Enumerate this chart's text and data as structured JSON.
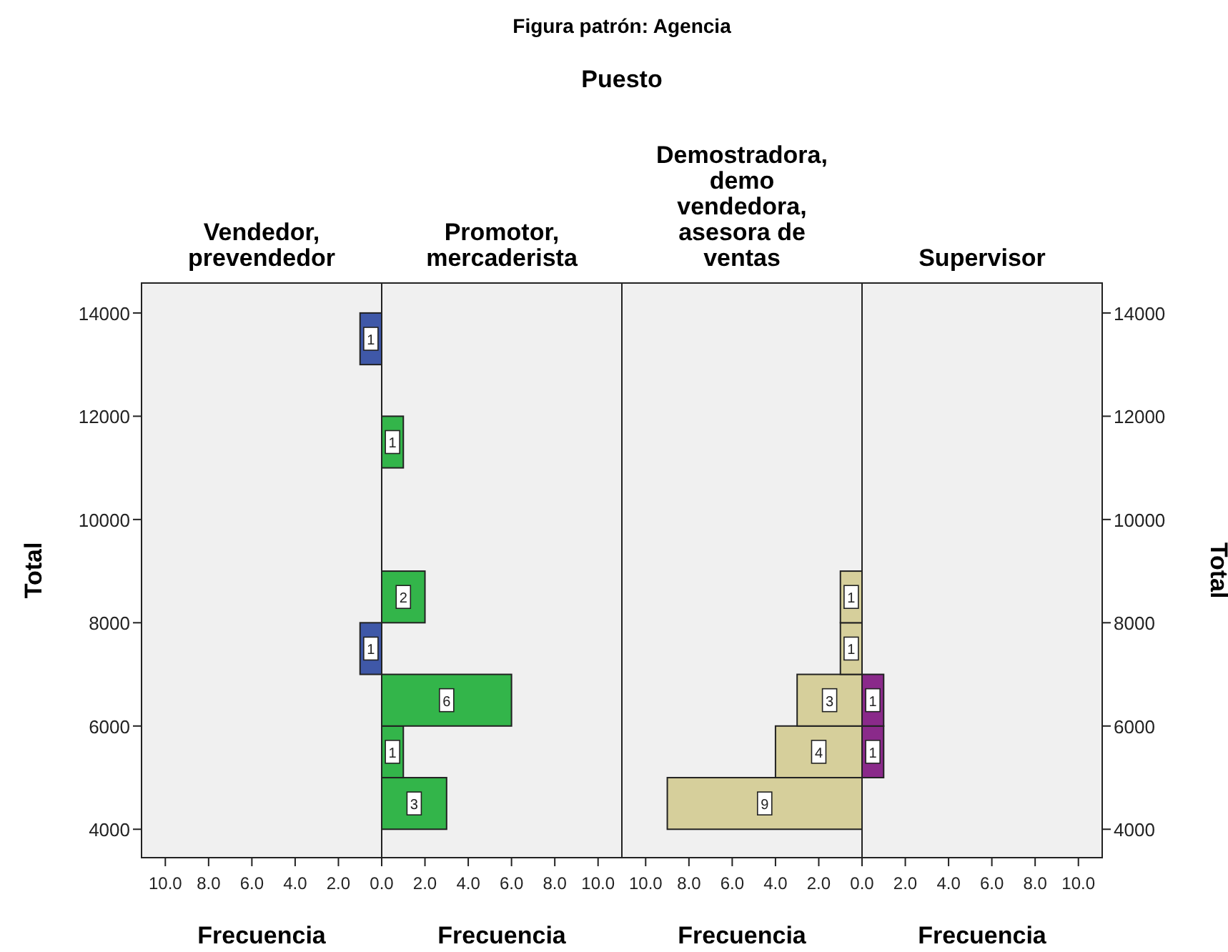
{
  "chart_data": [
    {
      "type": "histogram",
      "orientation": "horizontal",
      "title": "Vendedor, prevendedor",
      "annotations": [
        "Figura patrón: Agencia",
        "Puesto"
      ],
      "xlabel": "Frecuencia",
      "ylabel": "Total",
      "bins": [
        4000,
        5000,
        6000,
        7000,
        8000,
        9000,
        10000,
        11000,
        12000,
        13000,
        14000
      ],
      "values": [
        null,
        null,
        null,
        1,
        null,
        null,
        null,
        null,
        null,
        1
      ],
      "color": "#3f58a8",
      "data_labels": true,
      "xlim": [
        11.1,
        0
      ],
      "xticks": [
        {
          "value": 10,
          "label": "10.0"
        },
        {
          "value": 8,
          "label": "8.0"
        },
        {
          "value": 6,
          "label": "6.0"
        },
        {
          "value": 4,
          "label": "4.0"
        },
        {
          "value": 2,
          "label": "2.0"
        }
      ],
      "ylim": [
        3450,
        14580
      ],
      "yticks": [
        4000,
        6000,
        8000,
        10000,
        12000,
        14000
      ]
    },
    {
      "type": "histogram",
      "orientation": "horizontal",
      "title": "Promotor, mercaderista",
      "xlabel": "Frecuencia",
      "bins": [
        4000,
        5000,
        6000,
        7000,
        8000,
        9000,
        10000,
        11000,
        12000,
        13000,
        14000
      ],
      "values": [
        3,
        1,
        6,
        null,
        2,
        null,
        null,
        1,
        null,
        null
      ],
      "color": "#33b54a",
      "data_labels": true,
      "xlim": [
        0,
        11.1
      ],
      "xticks": [
        {
          "value": 0,
          "label": "0.0"
        },
        {
          "value": 2,
          "label": "2.0"
        },
        {
          "value": 4,
          "label": "4.0"
        },
        {
          "value": 6,
          "label": "6.0"
        },
        {
          "value": 8,
          "label": "8.0"
        },
        {
          "value": 10,
          "label": "10.0"
        }
      ],
      "ylim": [
        3450,
        14580
      ],
      "tick_labels": "x"
    },
    {
      "type": "histogram",
      "orientation": "horizontal",
      "title": "Demostradora, demo vendedora, asesora de ventas",
      "xlabel": "Frecuencia",
      "bins": [
        4000,
        5000,
        6000,
        7000,
        8000,
        9000,
        10000,
        11000,
        12000,
        13000,
        14000
      ],
      "values": [
        9,
        4,
        3,
        1,
        1,
        null,
        null,
        null,
        null,
        null
      ],
      "color": "#d6cf9b",
      "data_labels": true,
      "xlim": [
        11.1,
        0
      ],
      "xticks": [
        {
          "value": 10,
          "label": "10.0"
        },
        {
          "value": 8,
          "label": "8.0"
        },
        {
          "value": 6,
          "label": "6.0"
        },
        {
          "value": 4,
          "label": "4.0"
        },
        {
          "value": 2,
          "label": "2.0"
        }
      ],
      "ylim": [
        3450,
        14580
      ],
      "tick_labels": "x"
    },
    {
      "type": "histogram",
      "orientation": "horizontal",
      "title": "Supervisor",
      "xlabel": "Frecuencia",
      "ylabel": "Total",
      "bins": [
        4000,
        5000,
        6000,
        7000,
        8000,
        9000,
        10000,
        11000,
        12000,
        13000,
        14000
      ],
      "values": [
        null,
        1,
        1,
        null,
        null,
        null,
        null,
        null,
        null,
        null
      ],
      "color": "#8a2a8a",
      "data_labels": true,
      "xlim": [
        0,
        11.1
      ],
      "xticks": [
        {
          "value": 0,
          "label": "0.0"
        },
        {
          "value": 2,
          "label": "2.0"
        },
        {
          "value": 4,
          "label": "4.0"
        },
        {
          "value": 6,
          "label": "6.0"
        },
        {
          "value": 8,
          "label": "8.0"
        },
        {
          "value": 10,
          "label": "10.0"
        }
      ],
      "ylim": [
        3450,
        14580
      ],
      "yticks": [
        4000,
        6000,
        8000,
        10000,
        12000,
        14000
      ]
    }
  ]
}
